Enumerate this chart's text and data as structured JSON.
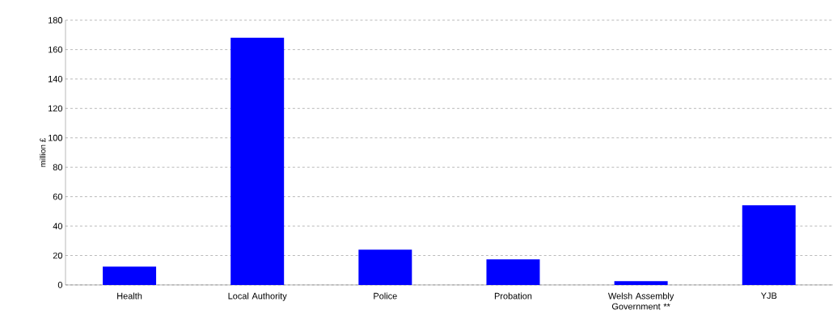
{
  "chart_data": {
    "type": "bar",
    "ylabel": "million £",
    "categories": [
      "Health",
      "Local Authority",
      "Police",
      "Probation",
      "Welsh Assembly Government **",
      "YJB"
    ],
    "values": [
      12.5,
      168,
      24,
      17.4,
      2.6,
      54.2
    ],
    "color": "#0000ff",
    "ylim": [
      0,
      180
    ],
    "yticks": [
      0,
      20,
      40,
      60,
      80,
      100,
      120,
      140,
      160,
      180
    ],
    "grid": "y"
  }
}
